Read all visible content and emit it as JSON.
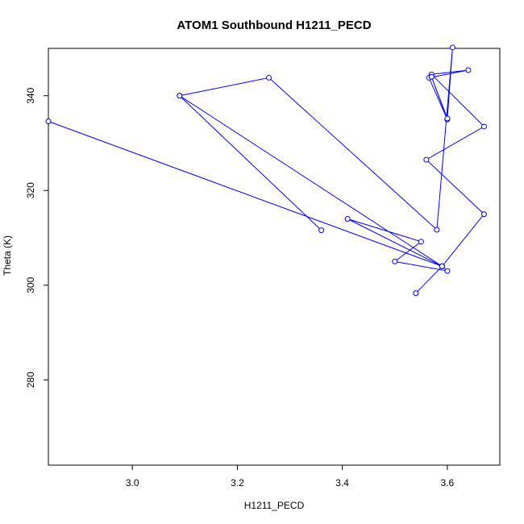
{
  "chart_data": {
    "type": "line",
    "title": "ATOM1 Southbound H1211_PECD",
    "xlabel": "H1211_PECD",
    "ylabel": "Theta (K)",
    "xlim": [
      2.84,
      3.7
    ],
    "ylim": [
      262,
      350
    ],
    "xticks": [
      3.0,
      3.2,
      3.4,
      3.6
    ],
    "xtick_labels": [
      "3.0",
      "3.2",
      "3.4",
      "3.6"
    ],
    "yticks": [
      280,
      300,
      320,
      340
    ],
    "ytick_labels": [
      "280",
      "300",
      "320",
      "340"
    ],
    "grid": false,
    "legend": "none",
    "series": [
      {
        "color": "#0000ff",
        "marker": "open-circle",
        "x": [
          3.54,
          3.59,
          3.67,
          3.56,
          3.67,
          3.57,
          3.64,
          3.565,
          3.6,
          3.57,
          3.6,
          3.61,
          3.58,
          3.26,
          3.09,
          3.59,
          2.84,
          3.59,
          3.41,
          3.55,
          3.5,
          3.6,
          3.59,
          3.09,
          3.36
        ],
        "y": [
          298.3,
          304.0,
          315.0,
          326.5,
          333.5,
          344.5,
          345.4,
          343.8,
          335.0,
          344.0,
          335.2,
          350.2,
          311.7,
          343.8,
          340.0,
          304.0,
          334.6,
          304.0,
          314.0,
          309.2,
          305.0,
          303.0,
          304.0,
          340.0,
          311.6
        ]
      }
    ],
    "style": {
      "line_color": "#0000ff",
      "point_color": "#0000ff",
      "background": "#ffffff",
      "frame_color": "#000000"
    }
  }
}
